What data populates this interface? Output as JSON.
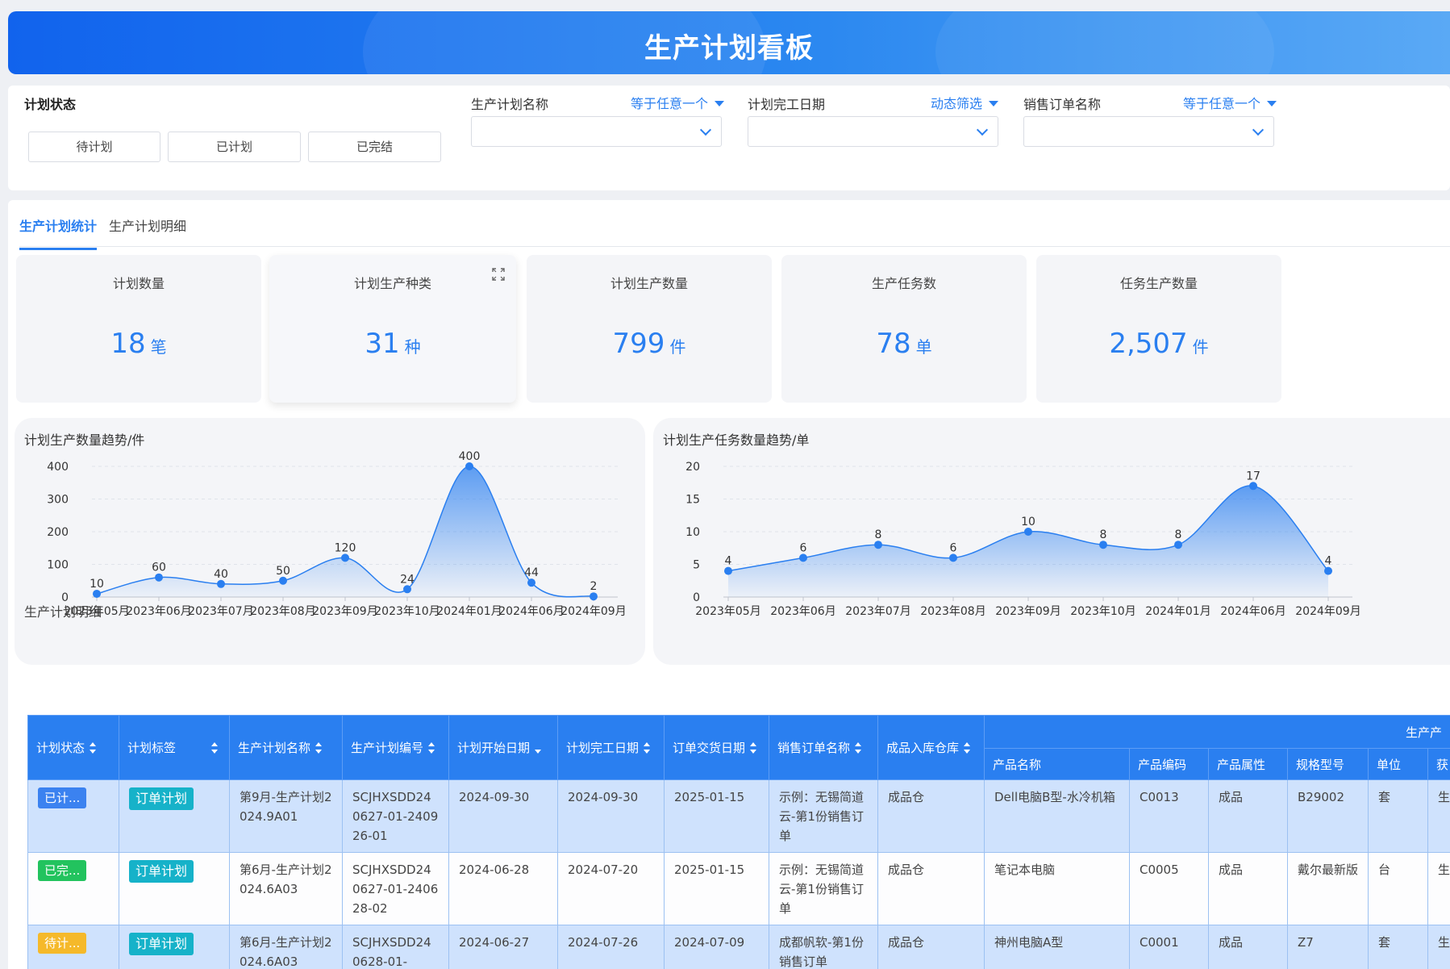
{
  "header": {
    "title": "生产计划看板"
  },
  "filters": {
    "status_label": "计划状态",
    "status_buttons": [
      "待计划",
      "已计划",
      "已完结"
    ],
    "plan_name_label": "生产计划名称",
    "plan_name_op": "等于任意一个",
    "finish_date_label": "计划完工日期",
    "finish_date_op": "动态筛选",
    "sales_order_label": "销售订单名称",
    "sales_order_op": "等于任意一个"
  },
  "tabs": [
    "生产计划统计",
    "生产计划明细"
  ],
  "kpis": [
    {
      "title": "计划数量",
      "value": "18",
      "unit": "笔"
    },
    {
      "title": "计划生产种类",
      "value": "31",
      "unit": "种"
    },
    {
      "title": "计划生产数量",
      "value": "799",
      "unit": "件"
    },
    {
      "title": "生产任务数",
      "value": "78",
      "unit": "单"
    },
    {
      "title": "任务生产数量",
      "value": "2,507",
      "unit": "件"
    }
  ],
  "chart_data": [
    {
      "type": "area",
      "title": "计划生产数量趋势/件",
      "categories": [
        "2023年05月",
        "2023年06月",
        "2023年07月",
        "2023年08月",
        "2023年09月",
        "2023年10月",
        "2024年01月",
        "2024年06月",
        "2024年09月"
      ],
      "values": [
        10,
        60,
        40,
        50,
        120,
        24,
        400,
        44,
        2
      ],
      "yticks": [
        0,
        100,
        200,
        300,
        400
      ],
      "ylim": [
        0,
        400
      ],
      "smooth": true,
      "color": "#2a7ff0"
    },
    {
      "type": "area",
      "title": "计划生产任务数量趋势/单",
      "categories": [
        "2023年05月",
        "2023年06月",
        "2023年07月",
        "2023年08月",
        "2023年09月",
        "2023年10月",
        "2024年01月",
        "2024年06月",
        "2024年09月"
      ],
      "values": [
        4,
        6,
        8,
        6,
        10,
        8,
        8,
        17,
        4
      ],
      "yticks": [
        0,
        5,
        10,
        15,
        20
      ],
      "ylim": [
        0,
        20
      ],
      "smooth": true,
      "color": "#2a7ff0"
    }
  ],
  "detail": {
    "title": "生产计划明细",
    "columns": [
      "计划状态",
      "计划标签",
      "生产计划名称",
      "生产计划编号",
      "计划开始日期",
      "计划完工日期",
      "订单交货日期",
      "销售订单名称",
      "成品入库仓库"
    ],
    "group_header": "生产产",
    "sub_columns": [
      "产品名称",
      "产品编码",
      "产品属性",
      "规格型号",
      "单位",
      "获"
    ],
    "rows": [
      {
        "status": "已计...",
        "status_color": "#3b82f0",
        "tag": "订单计划",
        "name": "第9月-生产计划2024.9A01",
        "code": "SCJHXSDD240627-01-240926-01",
        "start": "2024-09-30",
        "finish": "2024-09-30",
        "delivery": "2025-01-15",
        "order": "示例：无锡简道云-第1份销售订单",
        "warehouse": "成品仓",
        "product": "Dell电脑B型-水冷机箱",
        "pcode": "C0013",
        "attr": "成品",
        "spec": "B29002",
        "unit": "套",
        "extra": "生"
      },
      {
        "status": "已完...",
        "status_color": "#22c35e",
        "tag": "订单计划",
        "name": "第6月-生产计划2024.6A03",
        "code": "SCJHXSDD240627-01-240628-02",
        "start": "2024-06-28",
        "finish": "2024-07-20",
        "delivery": "2025-01-15",
        "order": "示例：无锡简道云-第1份销售订单",
        "warehouse": "成品仓",
        "product": "笔记本电脑",
        "pcode": "C0005",
        "attr": "成品",
        "spec": "戴尔最新版",
        "unit": "台",
        "extra": "生"
      },
      {
        "status": "待计...",
        "status_color": "#f5b92a",
        "tag": "订单计划",
        "name": "第6月-生产计划2024.6A03",
        "code": "SCJHXSDD240628-01-",
        "start": "2024-06-27",
        "finish": "2024-07-26",
        "delivery": "2024-07-09",
        "order": "成都帆软-第1份销售订单",
        "warehouse": "成品仓",
        "product": "神州电脑A型",
        "pcode": "C0001",
        "attr": "成品",
        "spec": "Z7",
        "unit": "套",
        "extra": "生"
      }
    ]
  }
}
